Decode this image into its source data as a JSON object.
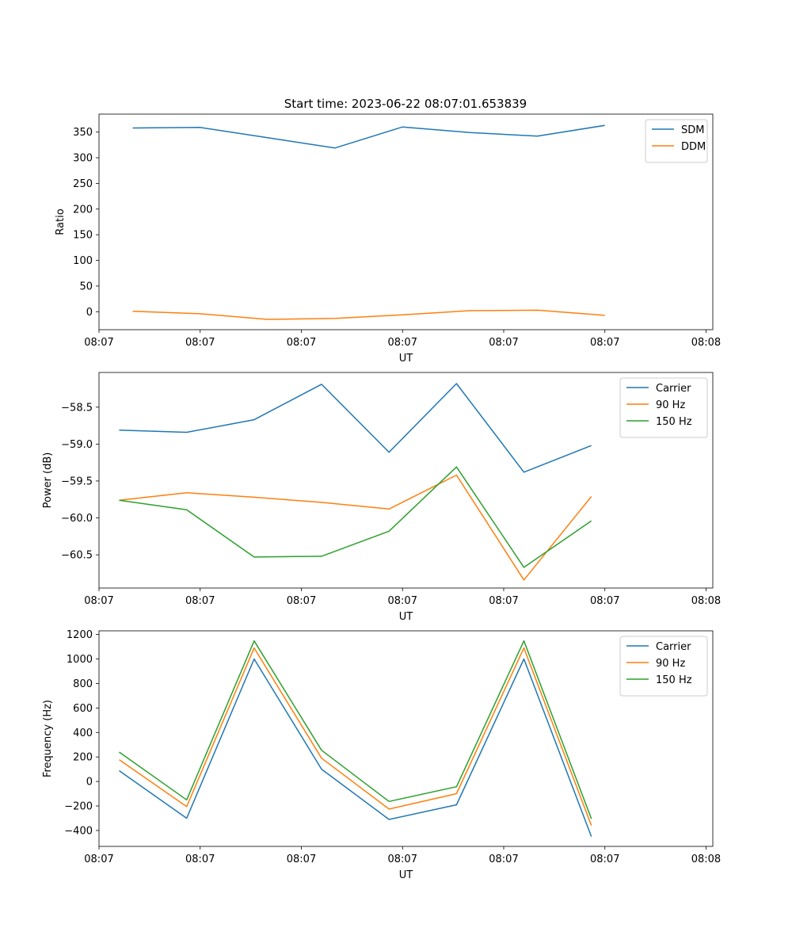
{
  "figure_title": "Start time: 2023-06-22 08:07:01.653839",
  "chart_data": [
    {
      "type": "line",
      "title": "Start time: 2023-06-22 08:07:01.653839",
      "xlabel": "UT",
      "ylabel": "Ratio",
      "x": [
        1,
        2,
        3,
        4,
        5,
        6,
        7,
        8
      ],
      "xlim": [
        0.5,
        9.6
      ],
      "x_ticks": [
        {
          "v": 0.5,
          "label": "08:07"
        },
        {
          "v": 2.0,
          "label": "08:07"
        },
        {
          "v": 3.5,
          "label": "08:07"
        },
        {
          "v": 5.0,
          "label": "08:07"
        },
        {
          "v": 6.5,
          "label": "08:07"
        },
        {
          "v": 8.0,
          "label": "08:07"
        },
        {
          "v": 9.5,
          "label": "08:08"
        }
      ],
      "ylim": [
        -35,
        385
      ],
      "y_ticks": [
        0,
        50,
        100,
        150,
        200,
        250,
        300,
        350
      ],
      "legend_position": "top-right",
      "series": [
        {
          "name": "SDM",
          "color": "#1f77b4",
          "values": [
            358,
            359,
            339,
            319,
            360,
            349,
            342,
            363
          ]
        },
        {
          "name": "DDM",
          "color": "#ff7f0e",
          "values": [
            1,
            -4,
            -15,
            -13,
            -6,
            2,
            3,
            -7
          ]
        }
      ]
    },
    {
      "type": "line",
      "title": "",
      "xlabel": "UT",
      "ylabel": "Power (dB)",
      "x": [
        0.8,
        1.8,
        2.8,
        3.8,
        4.8,
        5.8,
        6.8,
        7.8
      ],
      "xlim": [
        0.5,
        9.6
      ],
      "x_ticks": [
        {
          "v": 0.5,
          "label": "08:07"
        },
        {
          "v": 2.0,
          "label": "08:07"
        },
        {
          "v": 3.5,
          "label": "08:07"
        },
        {
          "v": 5.0,
          "label": "08:07"
        },
        {
          "v": 6.5,
          "label": "08:07"
        },
        {
          "v": 8.0,
          "label": "08:07"
        },
        {
          "v": 9.5,
          "label": "08:08"
        }
      ],
      "ylim": [
        -60.95,
        -58.03
      ],
      "y_ticks": [
        -58.5,
        -59.0,
        -59.5,
        -60.0,
        -60.5
      ],
      "y_tick_labels": [
        "−58.5",
        "−59.0",
        "−59.5",
        "−60.0",
        "−60.5"
      ],
      "legend_position": "top-right",
      "series": [
        {
          "name": "Carrier",
          "color": "#1f77b4",
          "values": [
            -58.81,
            -58.84,
            -58.67,
            -58.19,
            -59.11,
            -58.18,
            -59.38,
            -59.02
          ]
        },
        {
          "name": "90 Hz",
          "color": "#ff7f0e",
          "values": [
            -59.76,
            -59.66,
            -59.72,
            -59.79,
            -59.88,
            -59.42,
            -60.84,
            -59.71
          ]
        },
        {
          "name": "150 Hz",
          "color": "#2ca02c",
          "values": [
            -59.76,
            -59.89,
            -60.53,
            -60.52,
            -60.18,
            -59.31,
            -60.67,
            -60.04
          ]
        }
      ]
    },
    {
      "type": "line",
      "title": "",
      "xlabel": "UT",
      "ylabel": "Frequency (Hz)",
      "x": [
        0.8,
        1.8,
        2.8,
        3.8,
        4.8,
        5.8,
        6.8,
        7.8
      ],
      "xlim": [
        0.5,
        9.6
      ],
      "x_ticks": [
        {
          "v": 0.5,
          "label": "08:07"
        },
        {
          "v": 2.0,
          "label": "08:07"
        },
        {
          "v": 3.5,
          "label": "08:07"
        },
        {
          "v": 5.0,
          "label": "08:07"
        },
        {
          "v": 6.5,
          "label": "08:07"
        },
        {
          "v": 8.0,
          "label": "08:07"
        },
        {
          "v": 9.5,
          "label": "08:08"
        }
      ],
      "ylim": [
        -530,
        1230
      ],
      "y_ticks": [
        1200,
        1000,
        800,
        600,
        400,
        200,
        0,
        -200,
        -400
      ],
      "y_tick_labels": [
        "1200",
        "1000",
        "800",
        "600",
        "400",
        "200",
        "0",
        "−200",
        "−400"
      ],
      "legend_position": "top-right",
      "series": [
        {
          "name": "Carrier",
          "color": "#1f77b4",
          "values": [
            88,
            -300,
            1000,
            100,
            -310,
            -190,
            1000,
            -450
          ]
        },
        {
          "name": "90 Hz",
          "color": "#ff7f0e",
          "values": [
            178,
            -205,
            1090,
            190,
            -225,
            -100,
            1090,
            -360
          ]
        },
        {
          "name": "150 Hz",
          "color": "#2ca02c",
          "values": [
            240,
            -150,
            1148,
            255,
            -163,
            -43,
            1148,
            -305
          ]
        }
      ]
    }
  ]
}
